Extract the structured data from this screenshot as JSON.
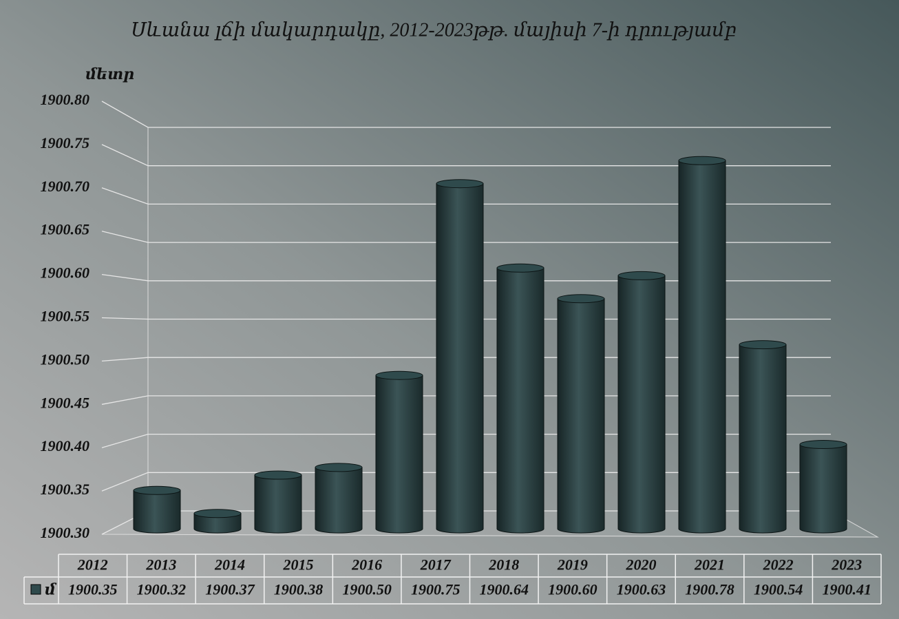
{
  "chart_data": {
    "type": "bar3d",
    "title": "Սևանա լճի մակարդակը, 2012-2023թթ. մայիսի 7-ի դրությամբ",
    "y_label": "մետր",
    "categories": [
      "2012",
      "2013",
      "2014",
      "2015",
      "2016",
      "2017",
      "2018",
      "2019",
      "2020",
      "2021",
      "2022",
      "2023"
    ],
    "series": [
      {
        "name": "մ",
        "color": "#2f4a4c",
        "values": [
          1900.35,
          1900.32,
          1900.37,
          1900.38,
          1900.5,
          1900.75,
          1900.64,
          1900.6,
          1900.63,
          1900.78,
          1900.54,
          1900.41
        ],
        "value_labels": [
          "1900.35",
          "1900.32",
          "1900.37",
          "1900.38",
          "1900.50",
          "1900.75",
          "1900.64",
          "1900.60",
          "1900.63",
          "1900.78",
          "1900.54",
          "1900.41"
        ]
      }
    ],
    "ylim": [
      1900.3,
      1900.8
    ],
    "yticks": [
      {
        "value": 1900.3,
        "label": "1900.30"
      },
      1900.35,
      {
        "value": 1900.4,
        "label": "1900.40"
      },
      1900.45,
      {
        "value": 1900.5,
        "label": "1900.50"
      },
      1900.55,
      {
        "value": 1900.6,
        "label": "1900.60"
      },
      1900.65,
      {
        "value": 1900.7,
        "label": "1900.70"
      },
      1900.75,
      {
        "value": 1900.8,
        "label": "1900.80"
      }
    ],
    "grid": true,
    "data_table": true
  }
}
